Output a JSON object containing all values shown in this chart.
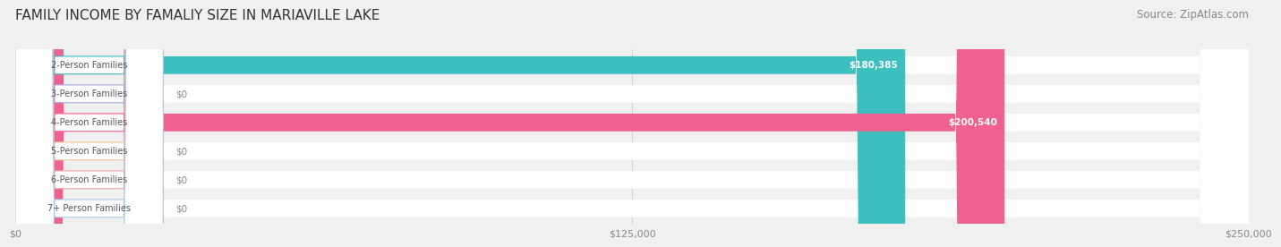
{
  "title": "FAMILY INCOME BY FAMALIY SIZE IN MARIAVILLE LAKE",
  "source": "Source: ZipAtlas.com",
  "categories": [
    "2-Person Families",
    "3-Person Families",
    "4-Person Families",
    "5-Person Families",
    "6-Person Families",
    "7+ Person Families"
  ],
  "values": [
    180385,
    0,
    200540,
    0,
    0,
    0
  ],
  "bar_colors": [
    "#3dbfbf",
    "#a8a8d8",
    "#f06090",
    "#f5c899",
    "#f0a0a0",
    "#a8c8e8"
  ],
  "value_labels": [
    "$180,385",
    "$0",
    "$200,540",
    "$0",
    "$0",
    "$0"
  ],
  "xlim": [
    0,
    250000
  ],
  "xticks": [
    0,
    125000,
    250000
  ],
  "xtick_labels": [
    "$0",
    "$125,000",
    "$250,000"
  ],
  "background_color": "#f0f0f0",
  "title_fontsize": 11,
  "source_fontsize": 8.5
}
